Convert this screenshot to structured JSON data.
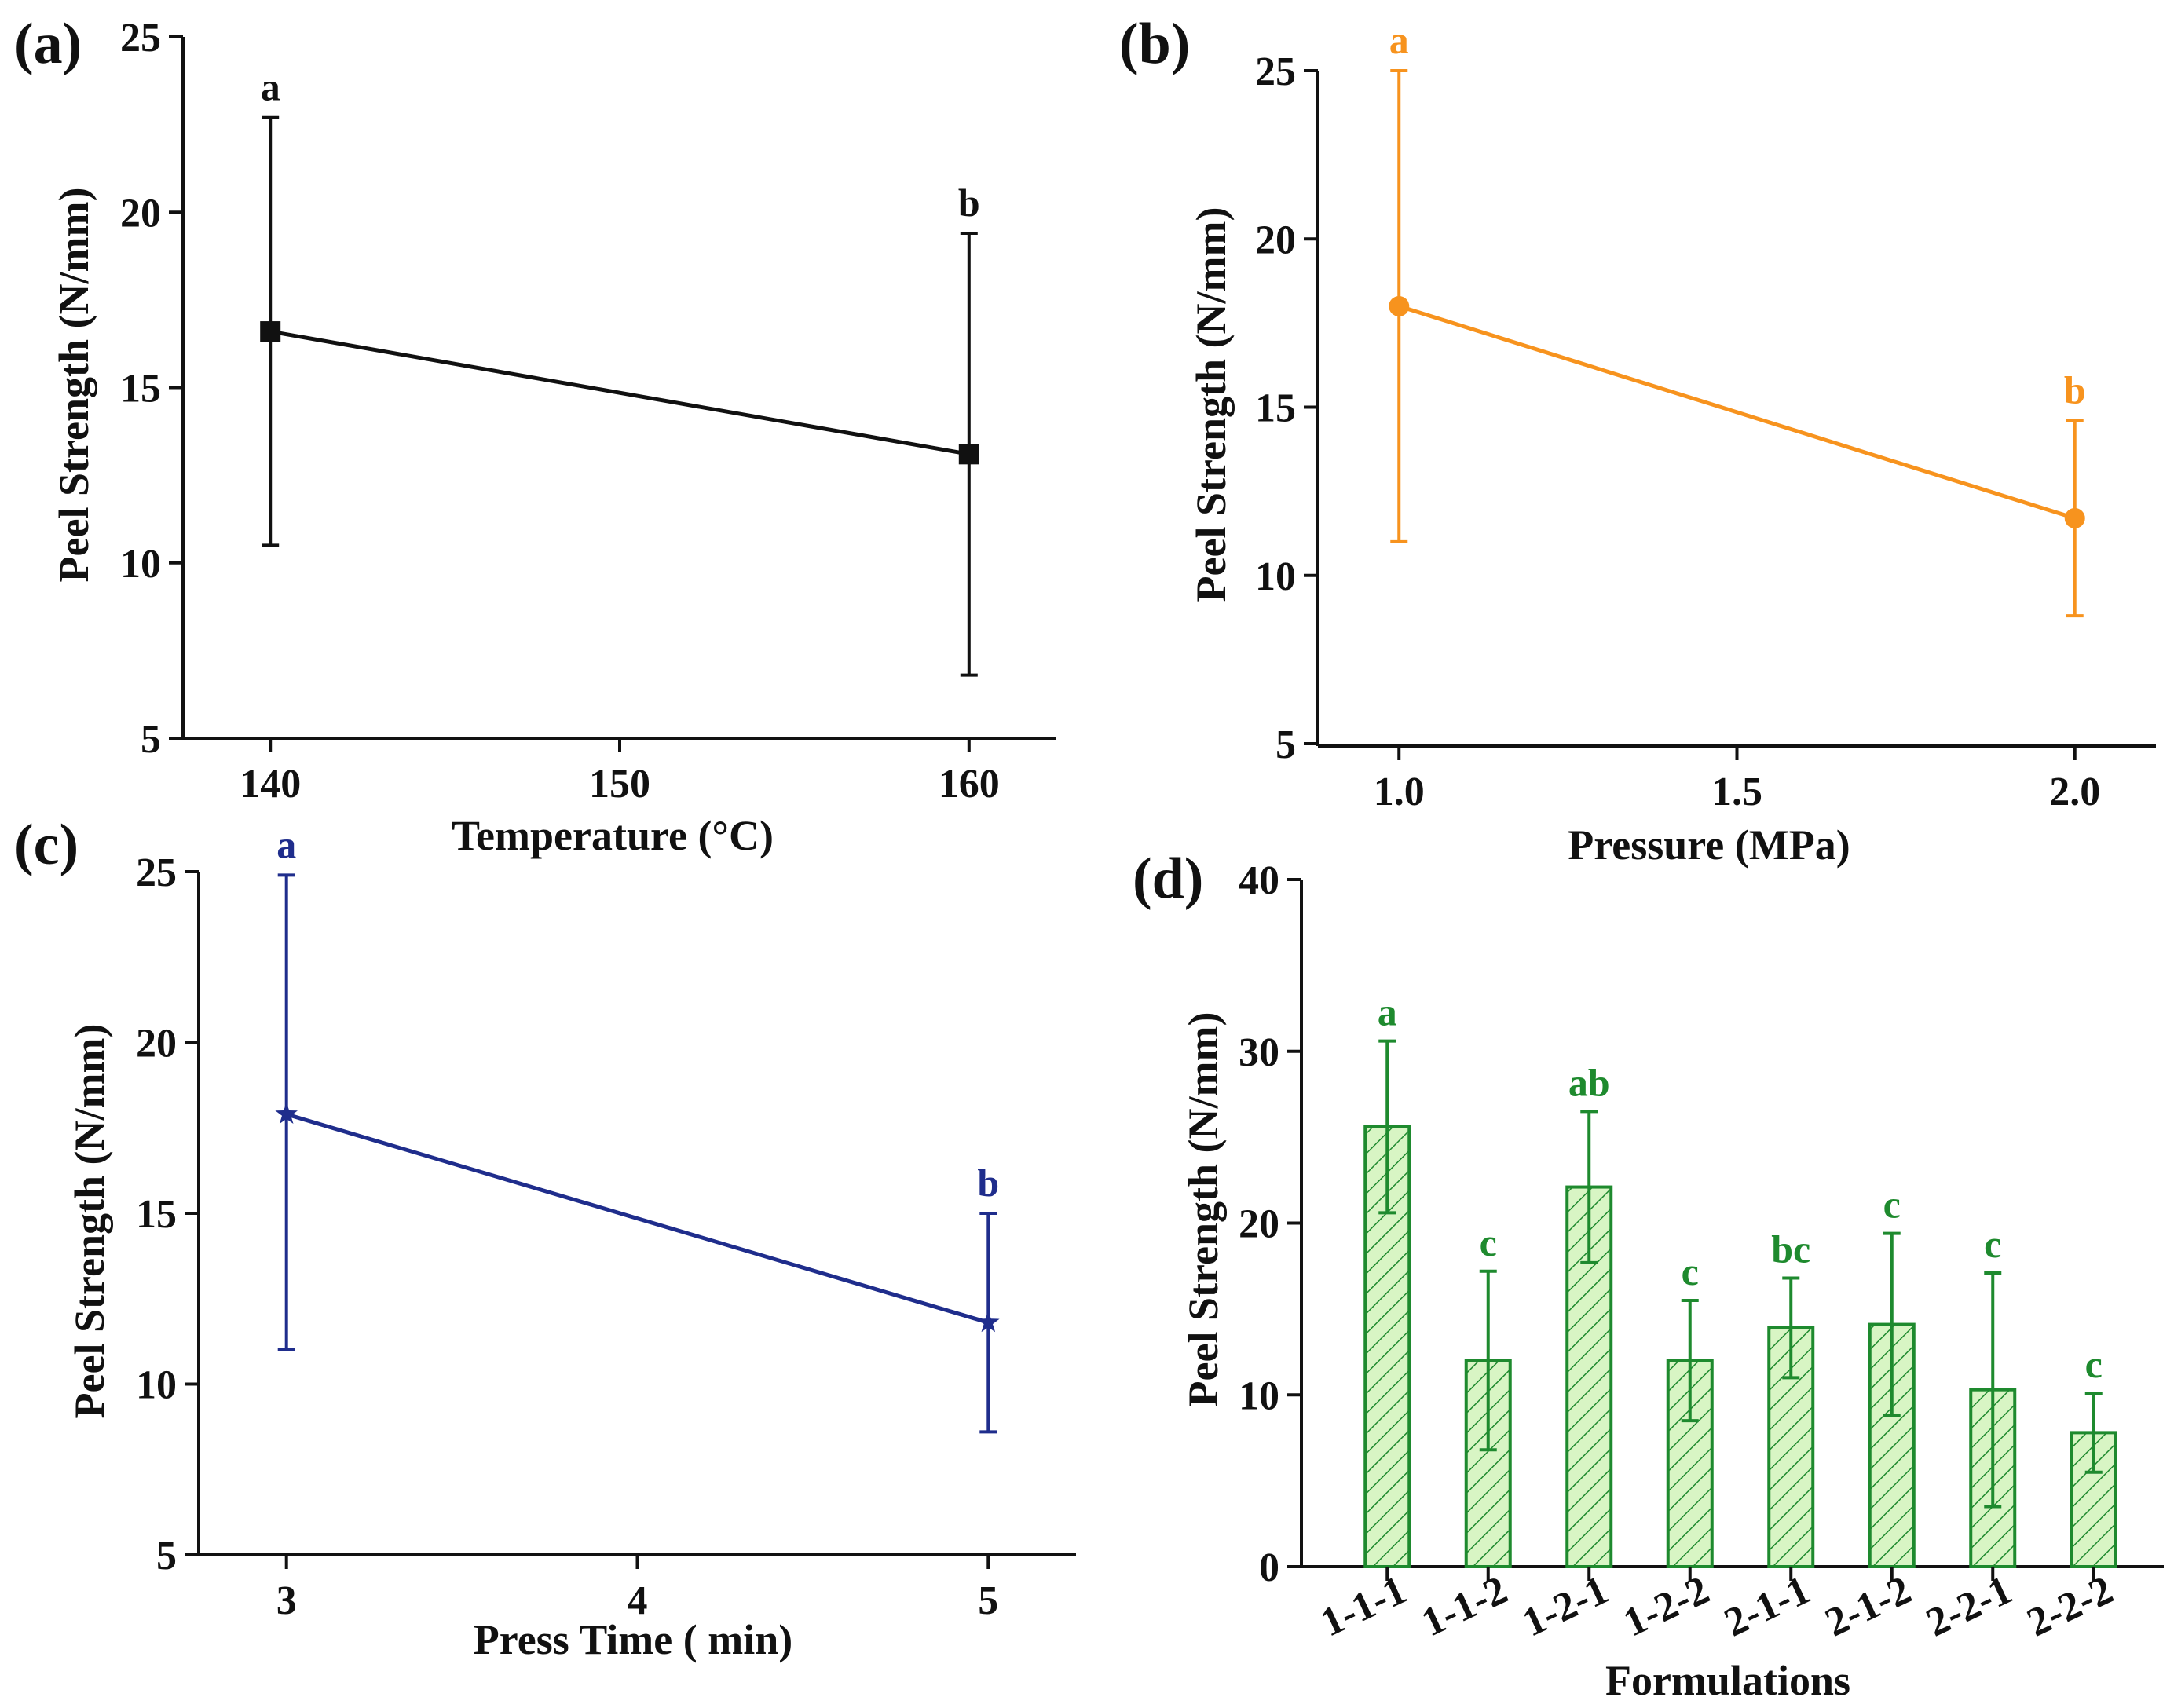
{
  "chart_data": [
    {
      "panel": "(a)",
      "type": "line",
      "color": "#111111",
      "marker": "square",
      "x": [
        140,
        160
      ],
      "y": [
        16.6,
        13.1
      ],
      "err_low": [
        10.5,
        6.8
      ],
      "err_high": [
        22.7,
        19.4
      ],
      "sig_labels": [
        "a",
        "b"
      ],
      "xlim": [
        137.5,
        162.5
      ],
      "ylim": [
        5,
        25
      ],
      "xticks": [
        140,
        150,
        160
      ],
      "xtick_labels": [
        "140",
        "150",
        "160"
      ],
      "yticks": [
        5,
        10,
        15,
        20,
        25
      ],
      "ytick_labels": [
        "5",
        "10",
        "15",
        "20",
        "25"
      ],
      "xlabel": "Temperature (°C)",
      "ylabel": "Peel Strength (N/mm)"
    },
    {
      "panel": "(b)",
      "type": "line",
      "color": "#f7931e",
      "marker": "circle",
      "x": [
        1.0,
        2.0
      ],
      "y": [
        18.0,
        11.7
      ],
      "err_low": [
        11.0,
        8.8
      ],
      "err_high": [
        25.0,
        14.6
      ],
      "sig_labels": [
        "a",
        "b"
      ],
      "xlim": [
        0.88,
        2.12
      ],
      "ylim": [
        5,
        25
      ],
      "xticks": [
        1.0,
        1.5,
        2.0
      ],
      "xtick_labels": [
        "1.0",
        "1.5",
        "2.0"
      ],
      "yticks": [
        5,
        10,
        15,
        20,
        25
      ],
      "ytick_labels": [
        "5",
        "10",
        "15",
        "20",
        "25"
      ],
      "xlabel": "Pressure (MPa)",
      "ylabel": "Peel Strength (N/mm)"
    },
    {
      "panel": "(c)",
      "type": "line",
      "color": "#1f2d8c",
      "marker": "star",
      "x": [
        3,
        5
      ],
      "y": [
        17.9,
        11.8
      ],
      "err_low": [
        11.0,
        8.6
      ],
      "err_high": [
        24.9,
        15.0
      ],
      "sig_labels": [
        "a",
        "b"
      ],
      "xlim": [
        2.75,
        5.25
      ],
      "ylim": [
        5,
        25
      ],
      "xticks": [
        3,
        4,
        5
      ],
      "xtick_labels": [
        "3",
        "4",
        "5"
      ],
      "yticks": [
        5,
        10,
        15,
        20,
        25
      ],
      "ytick_labels": [
        "5",
        "10",
        "15",
        "20",
        "25"
      ],
      "xlabel": "Press Time ( min)",
      "ylabel": "Peel Strength (N/mm)"
    },
    {
      "panel": "(d)",
      "type": "bar",
      "color": "#1e8a2e",
      "fill": "#d8f5c4",
      "categories": [
        "1-1-1",
        "1-1-2",
        "1-2-1",
        "1-2-2",
        "2-1-1",
        "2-1-2",
        "2-2-1",
        "2-2-2"
      ],
      "values": [
        25.6,
        12.0,
        22.1,
        12.0,
        13.9,
        14.1,
        10.3,
        7.8
      ],
      "errors": [
        5.0,
        5.2,
        4.4,
        3.5,
        2.9,
        5.3,
        6.8,
        2.3
      ],
      "sig_labels": [
        "a",
        "c",
        "ab",
        "c",
        "bc",
        "c",
        "c",
        "c"
      ],
      "ylim": [
        0,
        40
      ],
      "yticks": [
        0,
        10,
        20,
        30,
        40
      ],
      "ytick_labels": [
        "0",
        "10",
        "20",
        "30",
        "40"
      ],
      "xlabel": "Formulations",
      "ylabel": "Peel Strength (N/mm)"
    }
  ]
}
